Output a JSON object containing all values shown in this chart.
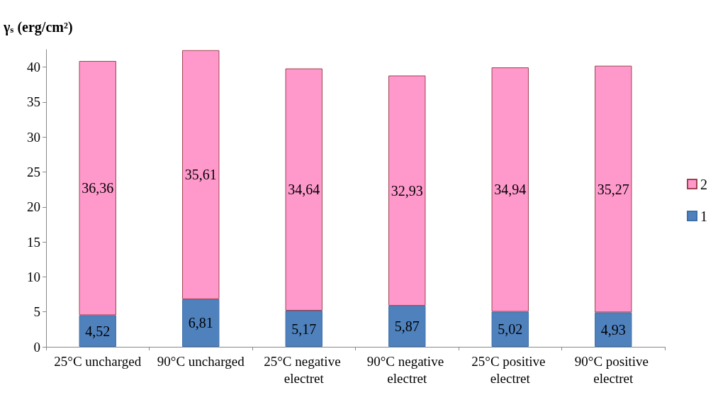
{
  "chart_data": {
    "type": "bar",
    "stacked": true,
    "ylabel": "γ$_{s}$ (erg/cm²)",
    "categories": [
      "25°C uncharged",
      "90°C uncharged",
      "25°C negative electret",
      "90°C negative electret",
      "25°C positive electret",
      "90°C positive electret"
    ],
    "series": [
      {
        "name": "1",
        "color": "#4f81bd",
        "values": [
          4.52,
          6.81,
          5.17,
          5.87,
          5.02,
          4.93
        ],
        "value_labels": [
          "4,52",
          "6,81",
          "5,17",
          "5,87",
          "5,02",
          "4,93"
        ]
      },
      {
        "name": "2",
        "color": "#ff99cc",
        "values": [
          36.36,
          35.61,
          34.64,
          32.93,
          34.94,
          35.27
        ],
        "value_labels": [
          "36,36",
          "35,61",
          "34,64",
          "32,93",
          "34,94",
          "35,27"
        ]
      }
    ],
    "ylim": [
      0,
      42.5
    ],
    "yticks": [
      0,
      5,
      10,
      15,
      20,
      25,
      30,
      35,
      40
    ],
    "grid": false,
    "legend": "right"
  }
}
